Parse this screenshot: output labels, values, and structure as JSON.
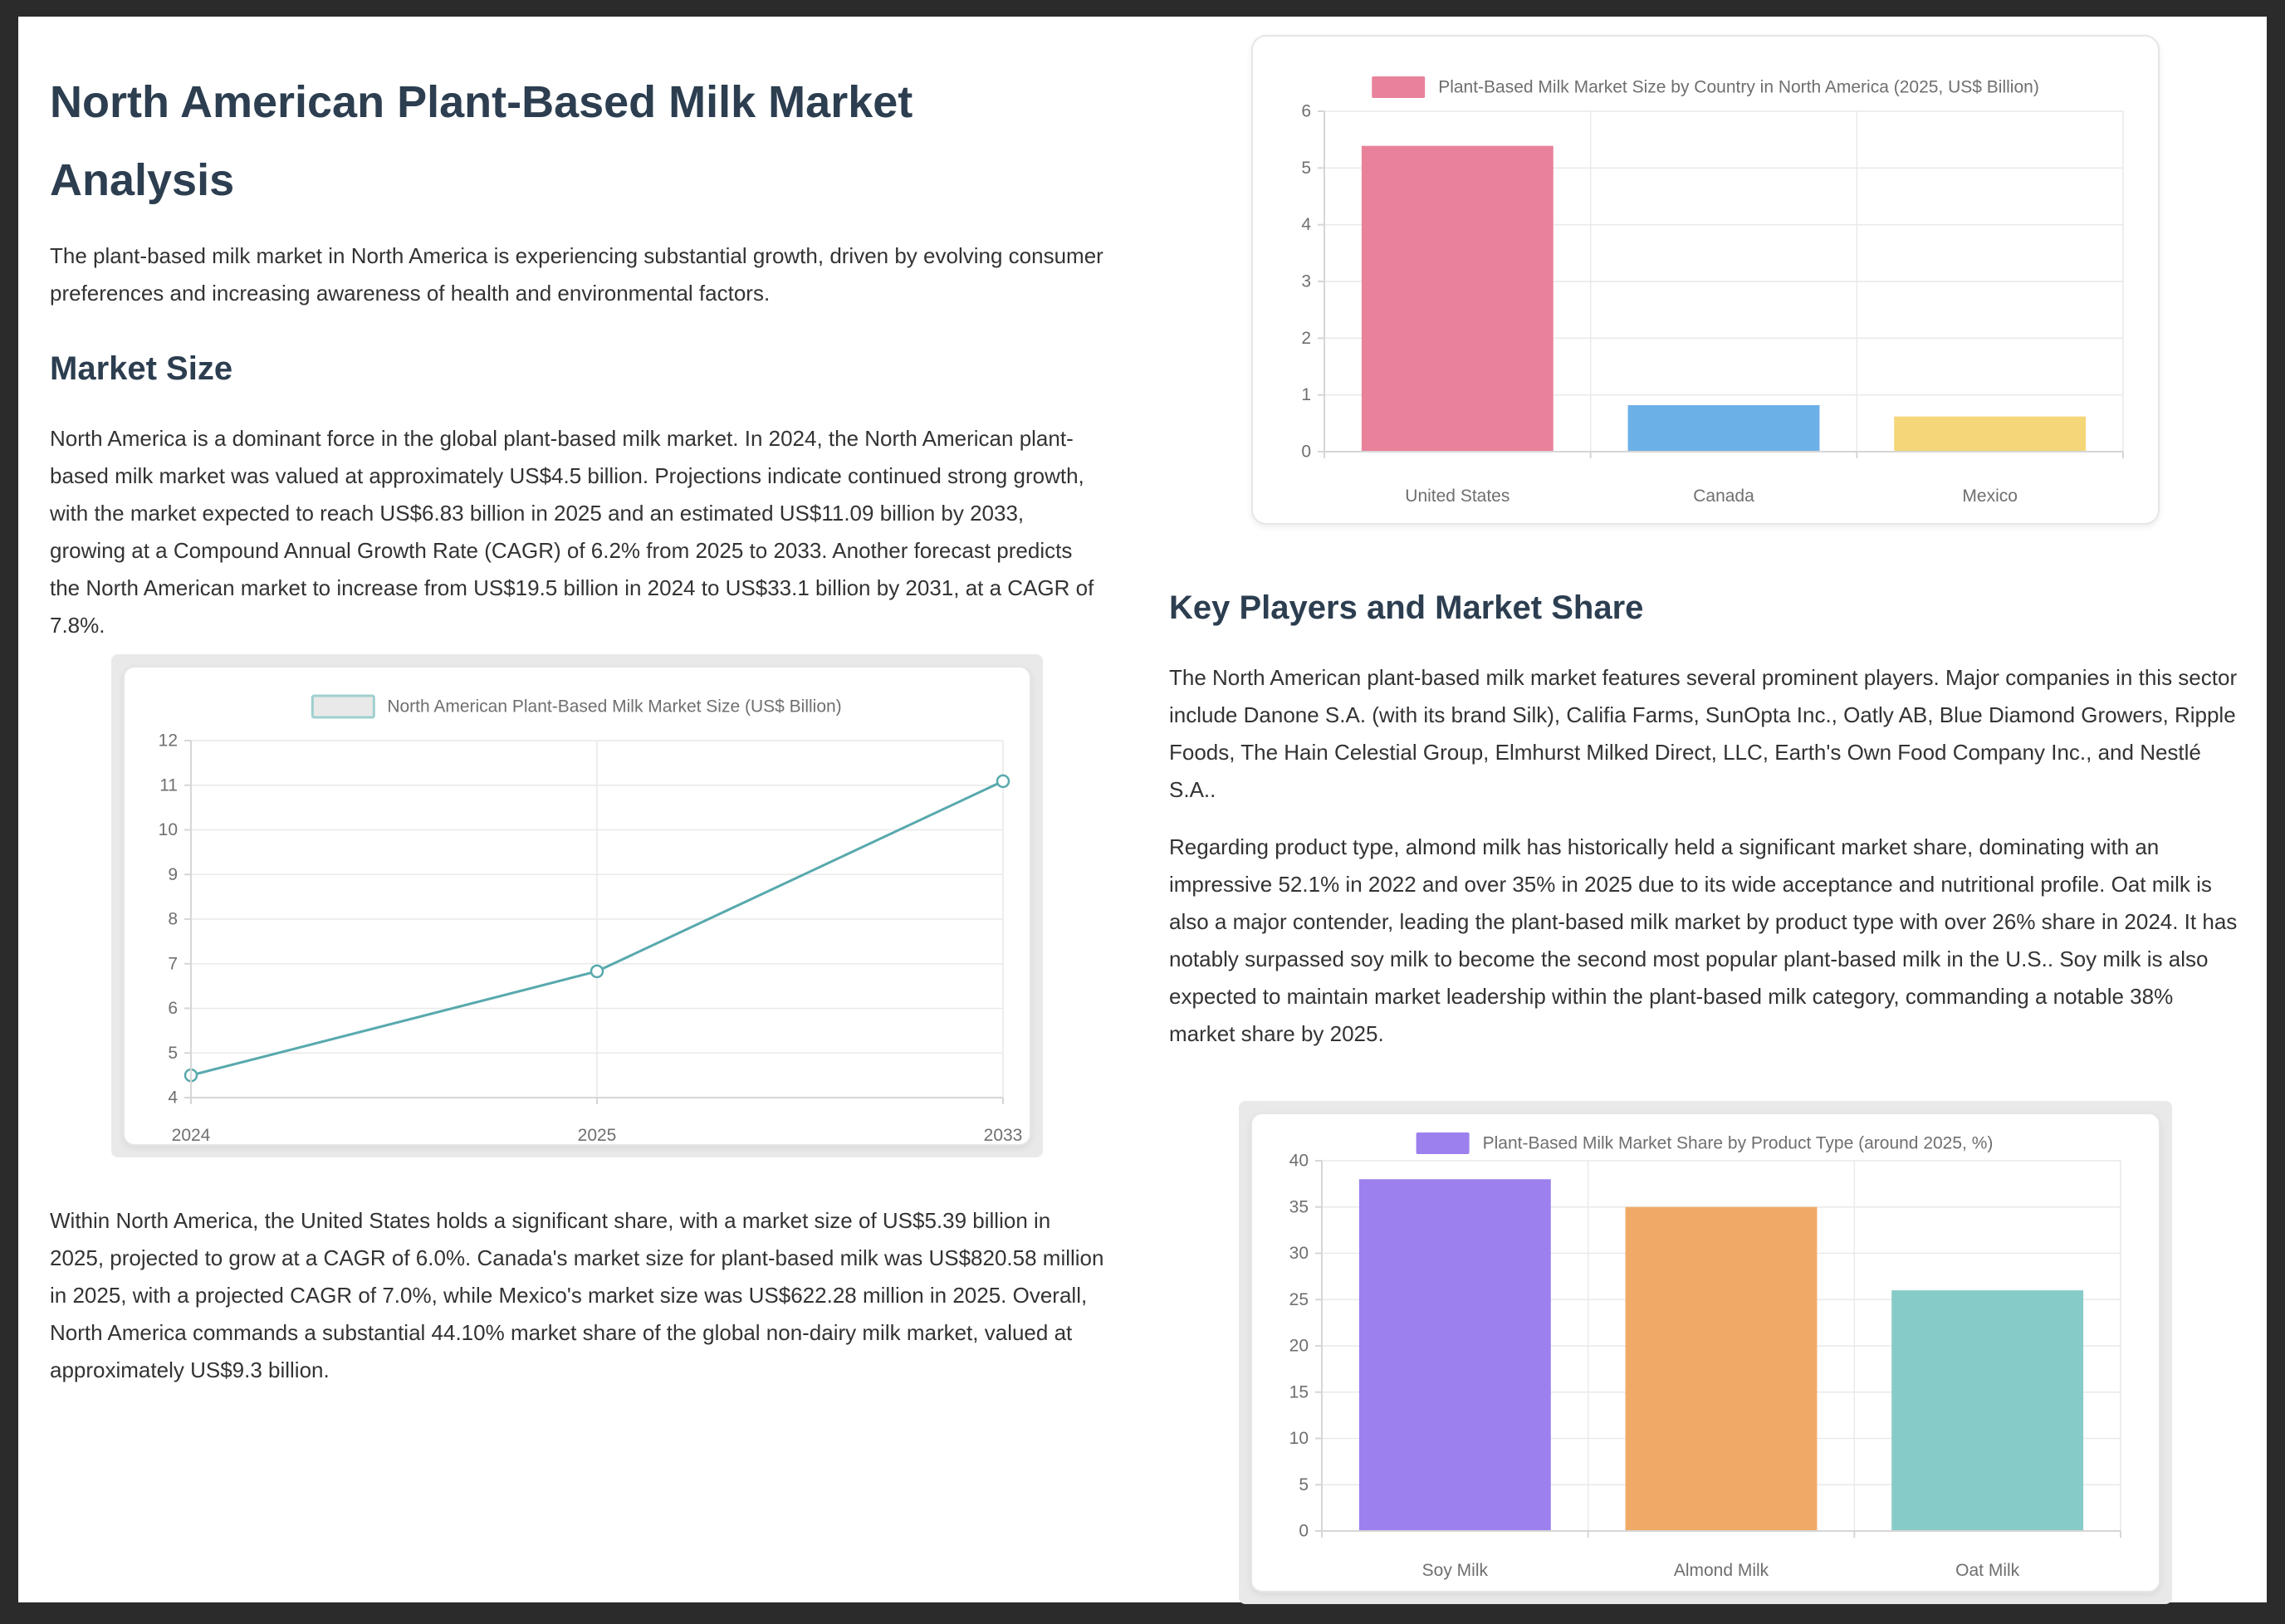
{
  "page": {
    "title": "North American Plant-Based Milk Market Analysis",
    "intro": "The plant-based milk market in North America is experiencing substantial growth, driven by evolving consumer preferences and increasing awareness of health and environmental factors.",
    "market_size": {
      "heading": "Market Size",
      "paragraph1": "North America is a dominant force in the global plant-based milk market. In 2024, the North American plant-based milk market was valued at approximately US$4.5 billion. Projections indicate continued strong growth, with the market expected to reach US$6.83 billion in 2025 and an estimated US$11.09 billion by 2033, growing at a Compound Annual Growth Rate (CAGR) of 6.2% from 2025 to 2033. Another forecast predicts the North American market to increase from US$19.5 billion in 2024 to US$33.1 billion by 2031, at a CAGR of 7.8%.",
      "paragraph2": "Within North America, the United States holds a significant share, with a market size of US$5.39 billion in 2025, projected to grow at a CAGR of 6.0%. Canada's market size for plant-based milk was US$820.58 million in 2025, with a projected CAGR of 7.0%, while Mexico's market size was US$622.28 million in 2025. Overall, North America commands a substantial 44.10% market share of the global non-dairy milk market, valued at approximately US$9.3 billion."
    },
    "key_players": {
      "heading": "Key Players and Market Share",
      "paragraph1": "The North American plant-based milk market features several prominent players. Major companies in this sector include Danone S.A. (with its brand Silk), Califia Farms, SunOpta Inc., Oatly AB, Blue Diamond Growers, Ripple Foods, The Hain Celestial Group, Elmhurst Milked Direct, LLC, Earth's Own Food Company Inc., and Nestlé S.A..",
      "paragraph2": "Regarding product type, almond milk has historically held a significant market share, dominating with an impressive 52.1% in 2022 and over 35% in 2025 due to its wide acceptance and nutritional profile. Oat milk is also a major contender, leading the plant-based milk market by product type with over 26% share in 2024. It has notably surpassed soy milk to become the second most popular plant-based milk in the U.S.. Soy milk is also expected to maintain market leadership within the plant-based milk category, commanding a notable 38% market share by 2025."
    }
  },
  "colors": {
    "background": "#2b2b2b",
    "panel": "#ffffff",
    "heading": "#2c3e50",
    "body_text": "#333333",
    "chart_text": "#6f6f6f",
    "grid": "#e9e9e9",
    "axis": "#d6d6d6"
  },
  "chart_data": [
    {
      "type": "line",
      "title": "North American Plant-Based Milk Market Size (US$ Billion)",
      "categories": [
        "2024",
        "2025",
        "2033"
      ],
      "values": [
        4.5,
        6.83,
        11.09
      ],
      "ylim": [
        4,
        12
      ],
      "ystep": 1,
      "line_color": "#58a9ad",
      "point_fill": "#ffffff",
      "legend_fill": "#e9e9e9",
      "legend_stroke": "#9fd0ce",
      "legend_position": "top",
      "grid": "on"
    },
    {
      "type": "bar",
      "title": "Plant-Based Milk Market Size by Country in North America (2025, US$ Billion)",
      "categories": [
        "United States",
        "Canada",
        "Mexico"
      ],
      "values": [
        5.39,
        0.82,
        0.62
      ],
      "colors": [
        "#e8829b",
        "#6cb0e8",
        "#f5d678"
      ],
      "legend_color": "#e8829b",
      "ylim": [
        0,
        6
      ],
      "ystep": 1,
      "legend_position": "top",
      "grid": "on"
    },
    {
      "type": "bar",
      "title": "Plant-Based Milk Market Share by Product Type (around 2025, %)",
      "categories": [
        "Soy Milk",
        "Almond Milk",
        "Oat Milk"
      ],
      "values": [
        38,
        35,
        26
      ],
      "colors": [
        "#9c80ed",
        "#f0aa68",
        "#87cbc8"
      ],
      "legend_color": "#9c80ed",
      "ylim": [
        0,
        40
      ],
      "ystep": 5,
      "legend_position": "top",
      "grid": "on"
    }
  ]
}
